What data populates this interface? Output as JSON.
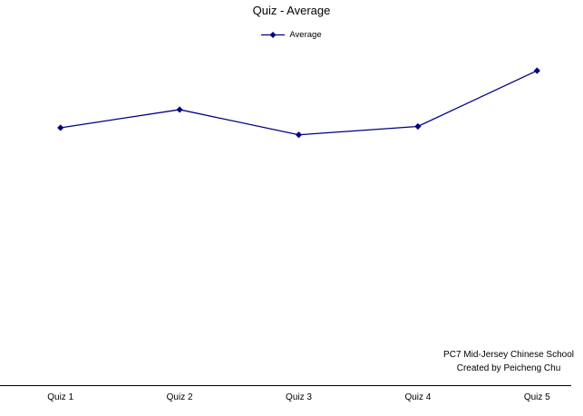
{
  "title": "Quiz - Average",
  "legend": {
    "label": "Average"
  },
  "annotation": {
    "line1": "PC7 Mid-Jersey Chinese School",
    "line2": "Created by Peicheng Chu"
  },
  "colors": {
    "series": "#000080",
    "axis": "#000000",
    "text": "#000000"
  },
  "chart_data": {
    "type": "line",
    "title": "Quiz - Average",
    "categories": [
      "Quiz 1",
      "Quiz 2",
      "Quiz 3",
      "Quiz 4",
      "Quiz 5"
    ],
    "series": [
      {
        "name": "Average",
        "values": [
          76.8,
          82.2,
          74.7,
          77.2,
          93.8
        ]
      }
    ],
    "xlabel": "",
    "ylabel": "",
    "ylim": [
      0,
      100
    ],
    "y_axis_visible": false,
    "x_axis_visible": true,
    "grid": false,
    "legend_position": "top",
    "marker": "diamond"
  }
}
